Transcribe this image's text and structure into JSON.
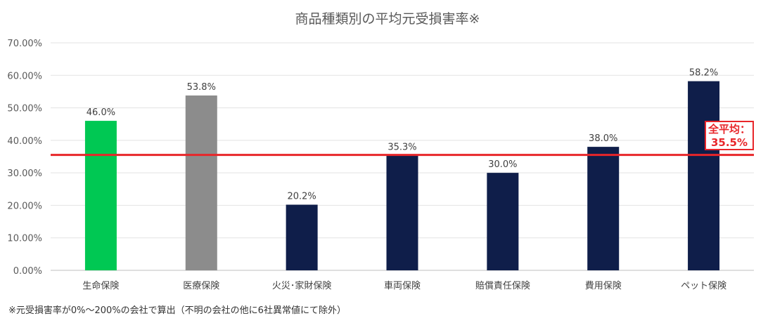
{
  "chart_data": {
    "type": "bar",
    "title": "商品種類別の平均元受損害率※",
    "categories": [
      "生命保険",
      "医療保険",
      "火災･家財保険",
      "車両保険",
      "賠償責任保険",
      "費用保険",
      "ペット保険"
    ],
    "values": [
      46.0,
      53.8,
      20.2,
      35.3,
      30.0,
      38.0,
      58.2
    ],
    "data_labels": [
      "46.0%",
      "53.8%",
      "20.2%",
      "35.3%",
      "30.0%",
      "38.0%",
      "58.2%"
    ],
    "bar_colors": [
      "#00c853",
      "#8c8c8c",
      "#0f1e4a",
      "#0f1e4a",
      "#0f1e4a",
      "#0f1e4a",
      "#0f1e4a"
    ],
    "ylim": [
      0,
      70
    ],
    "yticks": [
      "0.00%",
      "10.00%",
      "20.00%",
      "30.00%",
      "40.00%",
      "50.00%",
      "60.00%",
      "70.00%"
    ],
    "grid": true,
    "reference_line": {
      "value": 35.5,
      "label_line1": "全平均：",
      "label_line2": "35.5%",
      "color": "#e8262a"
    }
  },
  "footnote": "※元受損害率が0%～200%の会社で算出（不明の会社の他に6社異常値にて除外）"
}
